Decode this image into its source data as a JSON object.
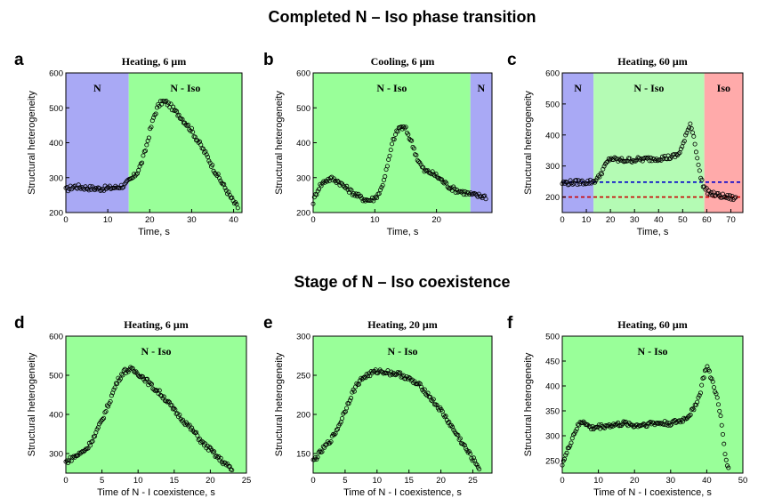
{
  "section_titles": {
    "top": "Completed N – Iso phase transition",
    "bottom": "Stage of N – Iso coexistence"
  },
  "colors": {
    "nematic": "#a9a9f5",
    "coexistence": "#99ff99",
    "coexistence_light": "#b4fbb4",
    "isotropic": "#ffaaaa",
    "blue_dashed": "#0000cc",
    "red_dashed": "#cc0000"
  },
  "chart_data": [
    {
      "panel": "a",
      "type": "scatter",
      "title": "Heating, 6 μm",
      "xlabel": "Time, s",
      "ylabel": "Structural heterogeneity",
      "xlim": [
        0,
        42
      ],
      "ylim": [
        200,
        600
      ],
      "xticks": [
        0,
        10,
        20,
        30,
        40
      ],
      "yticks": [
        200,
        300,
        400,
        500,
        600
      ],
      "regions": [
        {
          "label": "N",
          "from": 0,
          "to": 15,
          "color": "nematic"
        },
        {
          "label": "N - Iso",
          "from": 15,
          "to": 42,
          "color": "coexistence"
        }
      ],
      "series": [
        {
          "name": "data",
          "x": [
            0,
            2,
            4,
            6,
            8,
            10,
            12,
            14,
            15,
            16,
            17,
            18,
            19,
            20,
            21,
            22,
            23,
            24,
            25,
            26,
            27,
            28,
            29,
            30,
            31,
            32,
            33,
            34,
            35,
            36,
            37,
            38,
            39,
            40,
            41
          ],
          "y": [
            265,
            275,
            272,
            270,
            268,
            270,
            272,
            278,
            290,
            300,
            315,
            340,
            380,
            430,
            475,
            505,
            518,
            515,
            505,
            490,
            480,
            465,
            450,
            435,
            415,
            395,
            375,
            355,
            330,
            310,
            290,
            270,
            250,
            230,
            215
          ]
        }
      ]
    },
    {
      "panel": "b",
      "type": "scatter",
      "title": "Cooling, 6 μm",
      "xlabel": "Time, s",
      "ylabel": "Structural heterogeneity",
      "xlim": [
        0,
        29
      ],
      "ylim": [
        200,
        600
      ],
      "xticks": [
        0,
        10,
        20
      ],
      "yticks": [
        200,
        300,
        400,
        500,
        600
      ],
      "regions": [
        {
          "label": "N - Iso",
          "from": 0,
          "to": 25.5,
          "color": "coexistence"
        },
        {
          "label": "N",
          "from": 25.5,
          "to": 29,
          "color": "nematic"
        }
      ],
      "series": [
        {
          "name": "data",
          "x": [
            0,
            0.5,
            1,
            2,
            3,
            4,
            5,
            6,
            7,
            8,
            9,
            10,
            11,
            12,
            13,
            14,
            15,
            16,
            17,
            18,
            19,
            20,
            21,
            22,
            23,
            24,
            25,
            26,
            27,
            28
          ],
          "y": [
            230,
            255,
            275,
            292,
            297,
            290,
            275,
            262,
            250,
            240,
            235,
            240,
            265,
            330,
            410,
            445,
            440,
            400,
            350,
            320,
            315,
            305,
            290,
            275,
            265,
            260,
            255,
            250,
            248,
            245
          ]
        }
      ]
    },
    {
      "panel": "c",
      "type": "scatter",
      "title": "Heating, 60 μm",
      "xlabel": "Time, s",
      "ylabel": "Structural heterogeneity",
      "xlim": [
        0,
        75
      ],
      "ylim": [
        150,
        600
      ],
      "xticks": [
        0,
        10,
        20,
        30,
        40,
        50,
        60,
        70
      ],
      "yticks": [
        200,
        300,
        400,
        500,
        600
      ],
      "regions": [
        {
          "label": "N",
          "from": 0,
          "to": 13,
          "color": "nematic"
        },
        {
          "label": "N - Iso",
          "from": 13,
          "to": 59,
          "color": "coexistence_light"
        },
        {
          "label": "Iso",
          "from": 59,
          "to": 75,
          "color": "isotropic"
        }
      ],
      "hlines": [
        {
          "y": 248,
          "color": "blue_dashed"
        },
        {
          "y": 200,
          "color": "red_dashed"
        }
      ],
      "series": [
        {
          "name": "data",
          "x": [
            0,
            5,
            10,
            13,
            15,
            17,
            19,
            20,
            22,
            25,
            30,
            35,
            40,
            45,
            48,
            50,
            52,
            53,
            54,
            55,
            56,
            57,
            58,
            59,
            60,
            62,
            65,
            68,
            70,
            72
          ],
          "y": [
            245,
            247,
            248,
            250,
            262,
            290,
            315,
            325,
            320,
            318,
            320,
            322,
            325,
            328,
            335,
            365,
            410,
            440,
            415,
            380,
            330,
            280,
            250,
            230,
            220,
            210,
            205,
            200,
            198,
            195
          ]
        }
      ]
    },
    {
      "panel": "d",
      "type": "scatter",
      "title": "Heating, 6 μm",
      "xlabel": "Time of N - I coexistence, s",
      "ylabel": "Structural heterogeneity",
      "xlim": [
        0,
        25
      ],
      "ylim": [
        250,
        600
      ],
      "xticks": [
        0,
        5,
        10,
        15,
        20,
        25
      ],
      "yticks": [
        300,
        400,
        500,
        600
      ],
      "regions": [
        {
          "label": "N - Iso",
          "from": 0,
          "to": 25,
          "color": "coexistence"
        }
      ],
      "series": [
        {
          "name": "data",
          "x": [
            0,
            1,
            2,
            3,
            4,
            5,
            6,
            7,
            8,
            9,
            10,
            11,
            12,
            13,
            14,
            15,
            16,
            17,
            18,
            19,
            20,
            21,
            22,
            23
          ],
          "y": [
            278,
            290,
            300,
            315,
            345,
            385,
            430,
            480,
            510,
            515,
            505,
            490,
            470,
            455,
            435,
            410,
            390,
            370,
            350,
            325,
            310,
            290,
            275,
            258
          ]
        }
      ]
    },
    {
      "panel": "e",
      "type": "scatter",
      "title": "Heating, 20 μm",
      "xlabel": "Time of N - I coexistence, s",
      "ylabel": "Structural heterogeneity",
      "xlim": [
        0,
        28
      ],
      "ylim": [
        125,
        300
      ],
      "xticks": [
        0,
        5,
        10,
        15,
        20,
        25
      ],
      "yticks": [
        150,
        200,
        250,
        300
      ],
      "regions": [
        {
          "label": "N - Iso",
          "from": 0,
          "to": 28,
          "color": "coexistence"
        }
      ],
      "series": [
        {
          "name": "data",
          "x": [
            0,
            1,
            2,
            3,
            4,
            5,
            6,
            7,
            8,
            9,
            10,
            11,
            12,
            13,
            14,
            15,
            16,
            17,
            18,
            19,
            20,
            21,
            22,
            23,
            24,
            25,
            26
          ],
          "y": [
            140,
            150,
            160,
            170,
            185,
            205,
            225,
            240,
            248,
            252,
            255,
            255,
            253,
            252,
            250,
            245,
            240,
            235,
            225,
            215,
            205,
            193,
            180,
            168,
            155,
            143,
            132
          ]
        }
      ]
    },
    {
      "panel": "f",
      "type": "scatter",
      "title": "Heating, 60 μm",
      "xlabel": "Time of N - I coexistence, s",
      "ylabel": "Structural heterogeneity",
      "xlim": [
        0,
        50
      ],
      "ylim": [
        225,
        500
      ],
      "xticks": [
        0,
        10,
        20,
        30,
        40,
        50
      ],
      "yticks": [
        250,
        300,
        350,
        400,
        450,
        500
      ],
      "regions": [
        {
          "label": "N - Iso",
          "from": 0,
          "to": 50,
          "color": "coexistence"
        }
      ],
      "series": [
        {
          "name": "data",
          "x": [
            0,
            1,
            2,
            3,
            4,
            5,
            6,
            7,
            8,
            10,
            12,
            15,
            18,
            20,
            25,
            30,
            33,
            35,
            36,
            37,
            38,
            39,
            40,
            41,
            42,
            43,
            44,
            45,
            46
          ],
          "y": [
            245,
            260,
            280,
            300,
            315,
            325,
            330,
            320,
            315,
            318,
            320,
            322,
            325,
            320,
            325,
            325,
            330,
            340,
            350,
            365,
            380,
            415,
            440,
            420,
            400,
            370,
            330,
            270,
            232
          ]
        }
      ]
    }
  ]
}
